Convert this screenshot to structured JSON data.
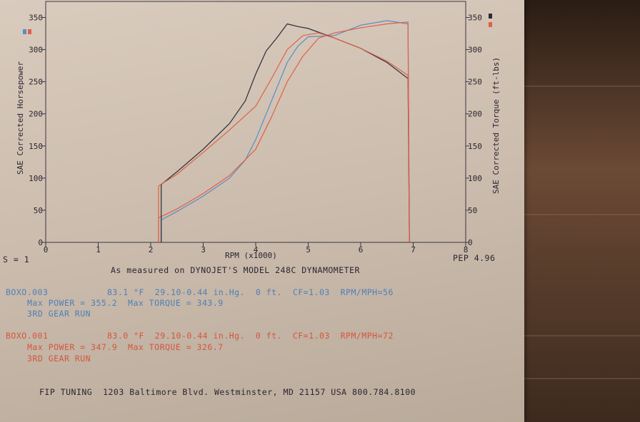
{
  "chart_data": {
    "type": "line",
    "xlabel": "RPM (x1000)",
    "ylabel_left": "SAE Corrected Horsepower",
    "ylabel_right": "SAE Corrected Torque (ft-lbs)",
    "xlim": [
      0,
      8
    ],
    "ylim": [
      0,
      375
    ],
    "x_ticks": [
      "0",
      "1",
      "2",
      "3",
      "4",
      "5",
      "6",
      "7",
      "8"
    ],
    "y_ticks": [
      "0",
      "50",
      "100",
      "150",
      "200",
      "250",
      "300",
      "350"
    ],
    "series": [
      {
        "name": "BOXO.003",
        "kind": "power",
        "color": "#5a8cc8",
        "x": [
          2.2,
          2.5,
          3.0,
          3.5,
          3.8,
          4.0,
          4.2,
          4.4,
          4.6,
          4.8,
          5.0,
          5.5,
          6.0,
          6.5,
          6.9
        ],
        "y": [
          35,
          48,
          72,
          100,
          128,
          160,
          200,
          240,
          280,
          305,
          320,
          322,
          338,
          345,
          340
        ]
      },
      {
        "name": "BOXO.001",
        "kind": "power",
        "color": "#e06048",
        "x": [
          2.15,
          2.5,
          3.0,
          3.5,
          4.0,
          4.3,
          4.6,
          4.9,
          5.2,
          5.5,
          6.0,
          6.5,
          6.9
        ],
        "y": [
          38,
          52,
          76,
          104,
          145,
          195,
          250,
          290,
          318,
          326,
          334,
          340,
          343
        ]
      },
      {
        "name": "BOXO.003",
        "kind": "torque",
        "color": "#2b2b38",
        "x": [
          2.2,
          2.5,
          3.0,
          3.5,
          3.8,
          4.0,
          4.2,
          4.4,
          4.6,
          4.8,
          5.0,
          5.3,
          5.5,
          6.0,
          6.5,
          6.9
        ],
        "y": [
          90,
          110,
          145,
          185,
          220,
          262,
          298,
          318,
          340,
          336,
          333,
          324,
          318,
          302,
          280,
          255
        ]
      },
      {
        "name": "BOXO.001",
        "kind": "torque",
        "color": "#e06048",
        "x": [
          2.15,
          2.5,
          3.0,
          3.5,
          4.0,
          4.3,
          4.6,
          4.9,
          5.2,
          5.5,
          6.0,
          6.5,
          6.9
        ],
        "y": [
          88,
          106,
          140,
          175,
          212,
          255,
          300,
          322,
          326,
          318,
          302,
          282,
          260
        ]
      }
    ]
  },
  "scale_label": "S = 1",
  "pep_label": "PEP 4.96",
  "footer_measure": "As measured on DYNOJET'S MODEL 248C DYNAMOMETER",
  "run1": {
    "file": "BOXO.003",
    "conditions": "83.1 °F  29.10-0.44 in.Hg.  0 ft.  CF=1.03  RPM/MPH=56",
    "max": "Max POWER = 355.2  Max TORQUE = 343.9",
    "gear": "3RD GEAR RUN"
  },
  "run2": {
    "file": "BOXO.001",
    "conditions": "83.0 °F  29.10-0.44 in.Hg.  0 ft.  CF=1.03  RPM/MPH=72",
    "max": "Max POWER = 347.9  Max TORQUE = 326.7",
    "gear": "3RD GEAR RUN"
  },
  "shop": "FIP TUNING  1203 Baltimore Blvd. Westminster, MD 21157 USA 800.784.8100"
}
